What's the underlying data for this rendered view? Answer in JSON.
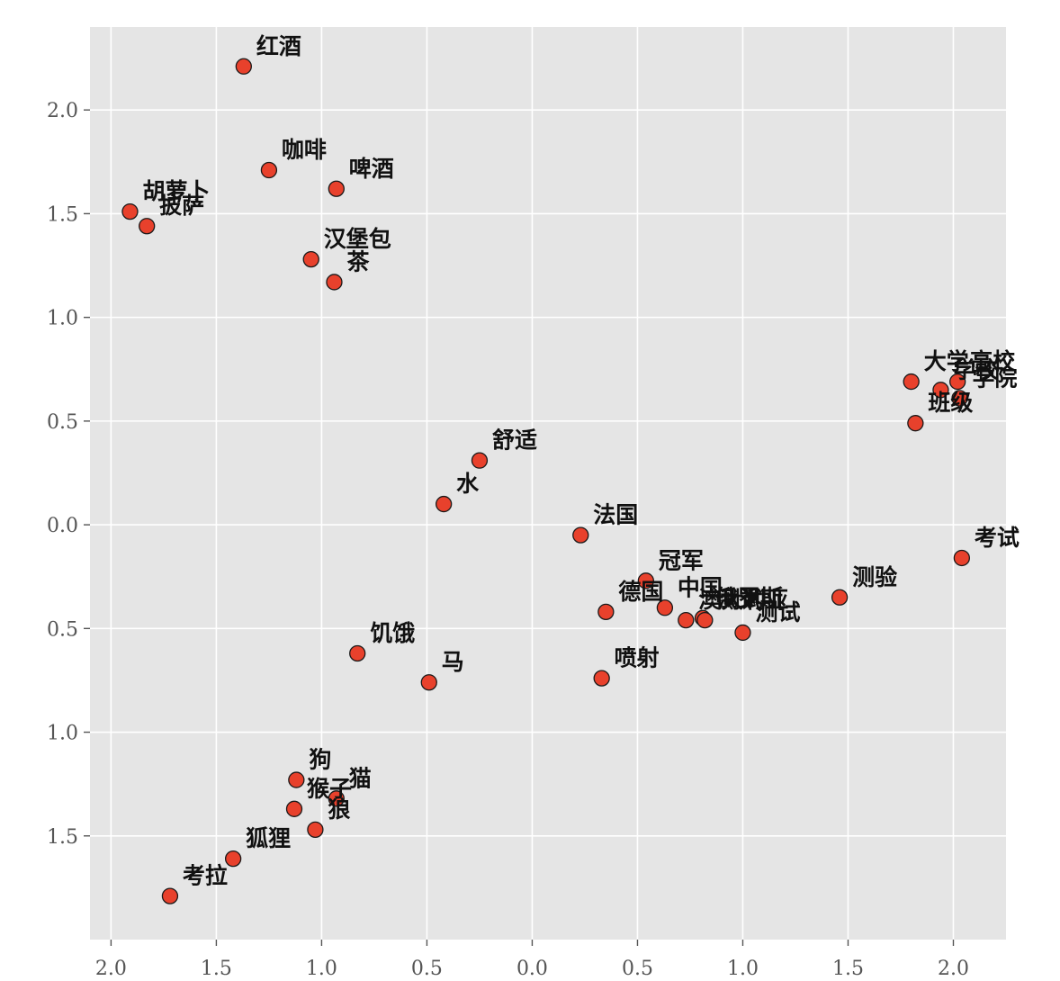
{
  "chart_data": {
    "type": "scatter",
    "title": "",
    "xlabel": "",
    "ylabel": "",
    "xlim": [
      -2.1,
      2.25
    ],
    "ylim": [
      -2.0,
      2.4
    ],
    "grid": true,
    "marker_color": "#e8412c",
    "marker_edge_color": "#1a1a1a",
    "background_color": "#e5e5e5",
    "x_ticks": [
      -2.0,
      -1.5,
      -1.0,
      -0.5,
      0.0,
      0.5,
      1.0,
      1.5,
      2.0
    ],
    "x_tick_labels": [
      "2.0",
      "1.5",
      "1.0",
      "0.5",
      "0.0",
      "0.5",
      "1.0",
      "1.5",
      "2.0"
    ],
    "y_ticks": [
      2.0,
      1.5,
      1.0,
      0.5,
      0.0,
      -0.5,
      -1.0,
      -1.5
    ],
    "y_tick_labels": [
      "2.0",
      "1.5",
      "1.0",
      "0.5",
      "0.0",
      "0.5",
      "1.0",
      "1.5"
    ],
    "points": [
      {
        "label": "红酒",
        "x": -1.37,
        "y": 2.21
      },
      {
        "label": "咖啡",
        "x": -1.25,
        "y": 1.71
      },
      {
        "label": "啤酒",
        "x": -0.93,
        "y": 1.62
      },
      {
        "label": "胡萝卜",
        "x": -1.91,
        "y": 1.51
      },
      {
        "label": "披萨",
        "x": -1.83,
        "y": 1.44
      },
      {
        "label": "汉堡包",
        "x": -1.05,
        "y": 1.28
      },
      {
        "label": "茶",
        "x": -0.94,
        "y": 1.17
      },
      {
        "label": "大学",
        "x": 1.8,
        "y": 0.69
      },
      {
        "label": "学校",
        "x": 1.94,
        "y": 0.65
      },
      {
        "label": "高校",
        "x": 2.02,
        "y": 0.69
      },
      {
        "label": "学院",
        "x": 2.03,
        "y": 0.61
      },
      {
        "label": "班级",
        "x": 1.82,
        "y": 0.49
      },
      {
        "label": "舒适",
        "x": -0.25,
        "y": 0.31
      },
      {
        "label": "水",
        "x": -0.42,
        "y": 0.1
      },
      {
        "label": "法国",
        "x": 0.23,
        "y": -0.05
      },
      {
        "label": "考试",
        "x": 2.04,
        "y": -0.16
      },
      {
        "label": "冠军",
        "x": 0.54,
        "y": -0.27
      },
      {
        "label": "测验",
        "x": 1.46,
        "y": -0.35
      },
      {
        "label": "德国",
        "x": 0.35,
        "y": -0.42
      },
      {
        "label": "中国",
        "x": 0.63,
        "y": -0.4
      },
      {
        "label": "澳大利亚",
        "x": 0.73,
        "y": -0.46
      },
      {
        "label": "俄罗斯",
        "x": 0.81,
        "y": -0.45
      },
      {
        "label": "测试",
        "x": 0.82,
        "y": -0.46
      },
      {
        "label": "测试",
        "x": 1.0,
        "y": -0.52
      },
      {
        "label": "饥饿",
        "x": -0.83,
        "y": -0.62
      },
      {
        "label": "马",
        "x": -0.49,
        "y": -0.76
      },
      {
        "label": "喷射",
        "x": 0.33,
        "y": -0.74
      },
      {
        "label": "狗",
        "x": -1.12,
        "y": -1.23
      },
      {
        "label": "猫",
        "x": -0.93,
        "y": -1.32
      },
      {
        "label": "猴子",
        "x": -1.13,
        "y": -1.37
      },
      {
        "label": "狼",
        "x": -1.03,
        "y": -1.47
      },
      {
        "label": "狐狸",
        "x": -1.42,
        "y": -1.61
      },
      {
        "label": "考拉",
        "x": -1.72,
        "y": -1.79
      }
    ]
  }
}
